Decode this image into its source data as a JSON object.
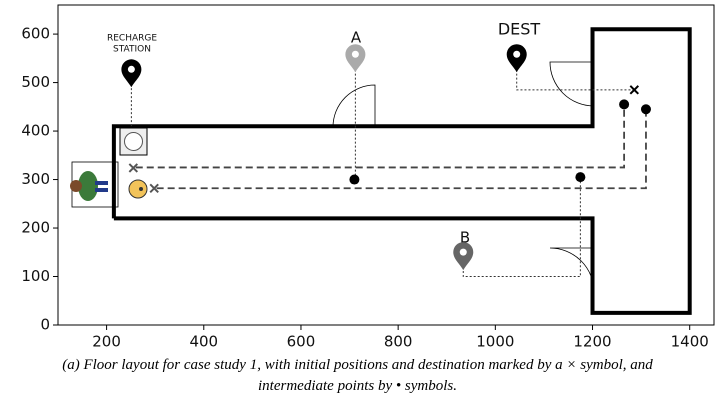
{
  "chart_data": {
    "type": "floorplan",
    "caption": "(a) Floor layout for case study 1, with initial positions and destination marked by a × symbol, and intermediate points by • symbols.",
    "annotations": [
      "RECHARGE",
      "STATION",
      "A",
      "DEST",
      "B"
    ],
    "xlim": [
      100,
      1450
    ],
    "ylim": [
      0,
      660
    ],
    "xticks": [
      200,
      400,
      600,
      800,
      1000,
      1200,
      1400
    ],
    "yticks": [
      0,
      100,
      200,
      300,
      400,
      500,
      600
    ],
    "walls": {
      "x": [
        215,
        215,
        1200,
        1200,
        1400,
        1400,
        1200,
        1200,
        215
      ],
      "y": [
        220,
        410,
        410,
        610,
        610,
        25,
        25,
        220,
        220
      ]
    },
    "paths": [
      {
        "x": [
          260,
          1265,
          1265
        ],
        "y": [
          325,
          325,
          455
        ]
      },
      {
        "x": [
          303,
          1310,
          1310
        ],
        "y": [
          282,
          282,
          445
        ]
      }
    ],
    "guides": [
      {
        "x": [
          251,
          251
        ],
        "y": [
          505,
          410
        ]
      },
      {
        "x": [
          712,
          712
        ],
        "y": [
          535,
          300
        ]
      },
      {
        "x": [
          1044,
          1044,
          1286
        ],
        "y": [
          535,
          485,
          485
        ]
      },
      {
        "x": [
          934,
          934,
          1175,
          1175
        ],
        "y": [
          128,
          100,
          100,
          305
        ]
      }
    ],
    "intermediate_points": {
      "x": [
        710,
        1175,
        1265,
        1310
      ],
      "y": [
        300,
        305,
        455,
        445
      ]
    },
    "crosses": {
      "x": [
        255,
        298,
        1286
      ],
      "y": [
        324,
        282,
        485
      ],
      "colors": [
        "#555555",
        "#555555",
        "#000000"
      ]
    },
    "pins": {
      "x": [
        251,
        712,
        1044,
        934
      ],
      "y": [
        515,
        546,
        546,
        138
      ],
      "colors": [
        "#000000",
        "#aaaaaa",
        "#000000",
        "#666666"
      ]
    }
  }
}
